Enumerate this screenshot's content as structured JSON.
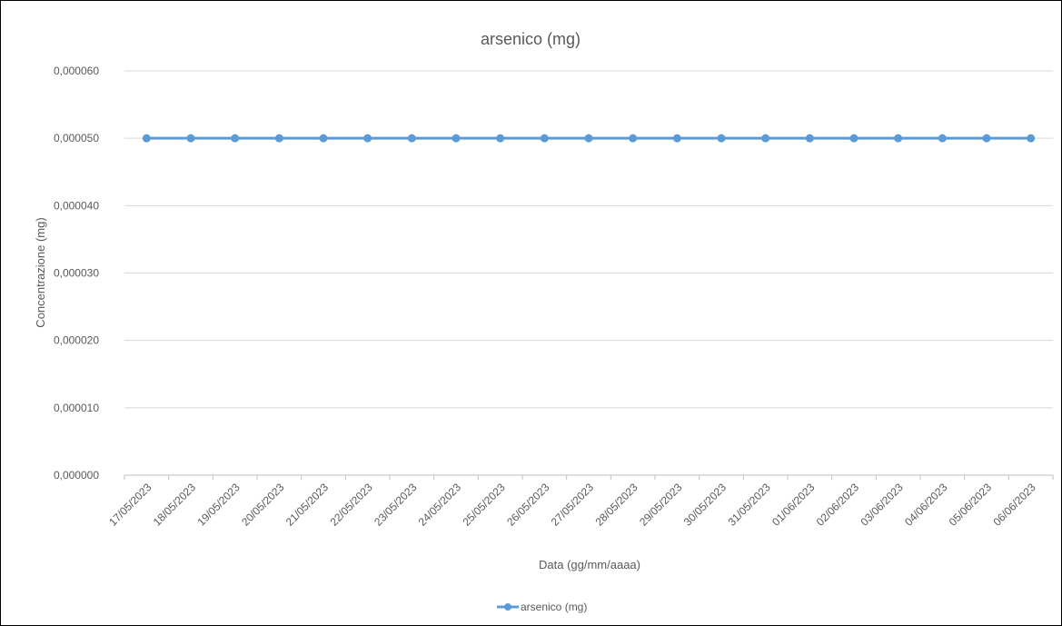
{
  "chart_data": {
    "type": "line",
    "title": "arsenico (mg)",
    "xlabel": "Data (gg/mm/aaaa)",
    "ylabel": "Concentrazione (mg)",
    "ylim": [
      0,
      6e-05
    ],
    "yticks": [
      "0,000000",
      "0,000010",
      "0,000020",
      "0,000030",
      "0,000040",
      "0,000050",
      "0,000060"
    ],
    "grid": true,
    "legend_position": "bottom",
    "categories": [
      "17/05/2023",
      "18/05/2023",
      "19/05/2023",
      "20/05/2023",
      "21/05/2023",
      "22/05/2023",
      "23/05/2023",
      "24/05/2023",
      "25/05/2023",
      "26/05/2023",
      "27/05/2023",
      "28/05/2023",
      "29/05/2023",
      "30/05/2023",
      "31/05/2023",
      "01/06/2023",
      "02/06/2023",
      "03/06/2023",
      "04/06/2023",
      "05/06/2023",
      "06/06/2023"
    ],
    "series": [
      {
        "name": "arsenico (mg)",
        "color": "#5B9BD5",
        "values": [
          5e-05,
          5e-05,
          5e-05,
          5e-05,
          5e-05,
          5e-05,
          5e-05,
          5e-05,
          5e-05,
          5e-05,
          5e-05,
          5e-05,
          5e-05,
          5e-05,
          5e-05,
          5e-05,
          5e-05,
          5e-05,
          5e-05,
          5e-05,
          5e-05
        ]
      }
    ]
  }
}
